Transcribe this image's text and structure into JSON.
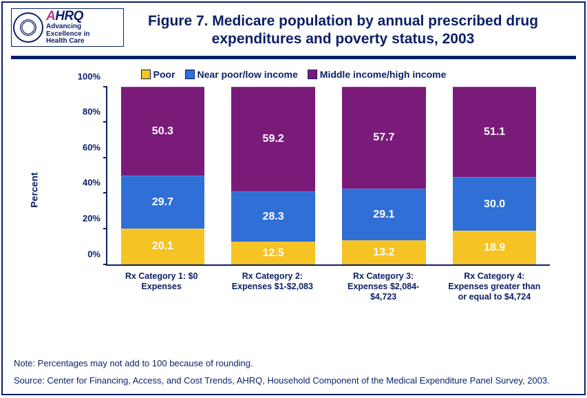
{
  "logo": {
    "brand": "AHRQ",
    "tagline1": "Advancing",
    "tagline2": "Excellence in",
    "tagline3": "Health Care"
  },
  "title": "Figure 7. Medicare population by annual prescribed drug expenditures and poverty status, 2003",
  "chart": {
    "type": "stacked-bar-100pct",
    "yaxis_title": "Percent",
    "ylim": [
      0,
      100
    ],
    "ytick_step": 20,
    "yticks": [
      "0%",
      "20%",
      "40%",
      "60%",
      "80%",
      "100%"
    ],
    "legend": [
      {
        "label": "Poor",
        "color": "#f6c324"
      },
      {
        "label": "Near poor/low income",
        "color": "#2f6fd6"
      },
      {
        "label": "Middle income/high income",
        "color": "#7a1b7a"
      }
    ],
    "categories": [
      {
        "label": "Rx Category 1: $0 Expenses",
        "values": [
          20.1,
          29.7,
          50.3
        ]
      },
      {
        "label": "Rx Category 2: Expenses $1-$2,083",
        "values": [
          12.5,
          28.3,
          59.2
        ]
      },
      {
        "label": "Rx Category 3: Expenses $2,084- $4,723",
        "values": [
          13.2,
          29.1,
          57.7
        ]
      },
      {
        "label": "Rx Category 4: Expenses greater than or equal to $4,724",
        "values": [
          18.9,
          30.0,
          51.1
        ]
      }
    ],
    "value_label_color": "#ffffff",
    "value_label_fontsize": 16,
    "axis_color": "#0b1f66",
    "background_color": "#ffffff"
  },
  "note": "Note: Percentages may not add to 100 because of rounding.",
  "source": "Source: Center for Financing, Access, and Cost Trends, AHRQ, Household Component of the Medical Expenditure Panel Survey, 2003."
}
